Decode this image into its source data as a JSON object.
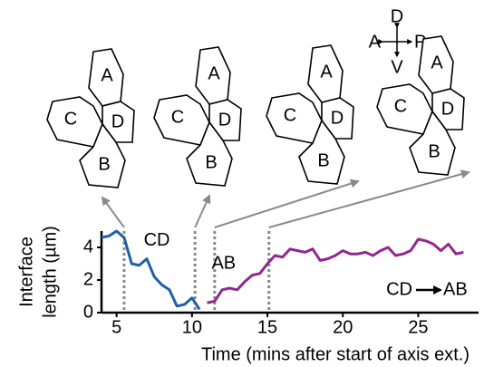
{
  "chart_data": {
    "type": "line",
    "xlabel": "Time (mins after start of axis ext.)",
    "ylabel": [
      "Interface",
      "length (µm)"
    ],
    "xlim": [
      4,
      29
    ],
    "ylim": [
      0,
      5
    ],
    "xticks": [
      5,
      10,
      15,
      20,
      25
    ],
    "yticks": [
      0,
      2,
      4
    ],
    "series": [
      {
        "name": "CD",
        "color": "#1f5fa8",
        "x": [
          4,
          4.5,
          5,
          5.5,
          6,
          6.5,
          7,
          7.5,
          8,
          8.5,
          9,
          9.5,
          10,
          10.5
        ],
        "values": [
          4.6,
          4.7,
          5.0,
          4.6,
          3.0,
          2.9,
          3.3,
          2.2,
          1.7,
          1.4,
          0.4,
          0.5,
          0.9,
          0.2
        ]
      },
      {
        "name": "AB",
        "color": "#93278f",
        "x": [
          11,
          11.5,
          12,
          12.5,
          13,
          13.5,
          14,
          14.5,
          15,
          15.5,
          16,
          16.5,
          17,
          17.5,
          18,
          18.5,
          19,
          19.5,
          20,
          20.5,
          21,
          21.5,
          22,
          22.5,
          23,
          23.5,
          24,
          24.5,
          25,
          25.5,
          26,
          26.5,
          27,
          27.5,
          28
        ],
        "values": [
          0.6,
          0.7,
          1.4,
          1.5,
          1.4,
          1.9,
          2.3,
          2.4,
          3.0,
          3.5,
          3.4,
          3.9,
          3.8,
          3.7,
          3.9,
          3.2,
          3.3,
          3.5,
          3.8,
          3.6,
          3.6,
          3.7,
          3.5,
          3.8,
          4.0,
          3.5,
          3.6,
          3.8,
          4.5,
          4.4,
          4.2,
          3.8,
          4.2,
          3.6,
          3.7
        ]
      }
    ],
    "snapshot_times": [
      5.5,
      10.2,
      11.5,
      15.1
    ],
    "transition_note": {
      "from": "CD",
      "to": "AB"
    }
  },
  "snapshots": [
    {
      "labels": {
        "A": "A",
        "B": "B",
        "C": "C",
        "D": "D"
      }
    },
    {
      "labels": {
        "A": "A",
        "B": "B",
        "C": "C",
        "D": "D"
      }
    },
    {
      "labels": {
        "A": "A",
        "B": "B",
        "C": "C",
        "D": "D"
      }
    },
    {
      "labels": {
        "A": "A",
        "B": "B",
        "C": "C",
        "D": "D"
      }
    }
  ],
  "compass": {
    "up": "D",
    "down": "V",
    "left": "A",
    "right": "P"
  }
}
